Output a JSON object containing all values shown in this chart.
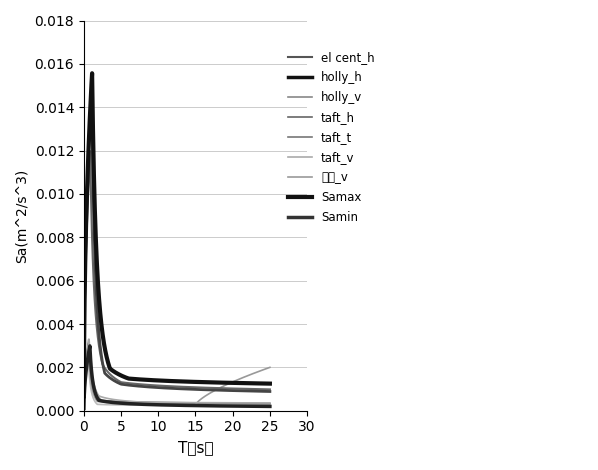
{
  "xlabel": "T（s）",
  "ylabel": "Sa(m^2/s^3)",
  "xlim": [
    0,
    30
  ],
  "ylim": [
    0,
    0.018
  ],
  "yticks": [
    0,
    0.002,
    0.004,
    0.006,
    0.008,
    0.01,
    0.012,
    0.014,
    0.016,
    0.018
  ],
  "xticks": [
    0,
    5,
    10,
    15,
    20,
    25,
    30
  ],
  "legend_labels": [
    "el cent_h",
    "holly_h",
    "holly_v",
    "taft_h",
    "taft_t",
    "taft_v",
    "天津_v",
    "Samax",
    "Samin"
  ],
  "legend_colors": [
    "#555555",
    "#111111",
    "#888888",
    "#666666",
    "#777777",
    "#aaaaaa",
    "#999999",
    "#111111",
    "#333333"
  ],
  "legend_lws": [
    1.5,
    2.5,
    1.2,
    1.2,
    1.2,
    1.2,
    1.2,
    3.0,
    2.5
  ]
}
